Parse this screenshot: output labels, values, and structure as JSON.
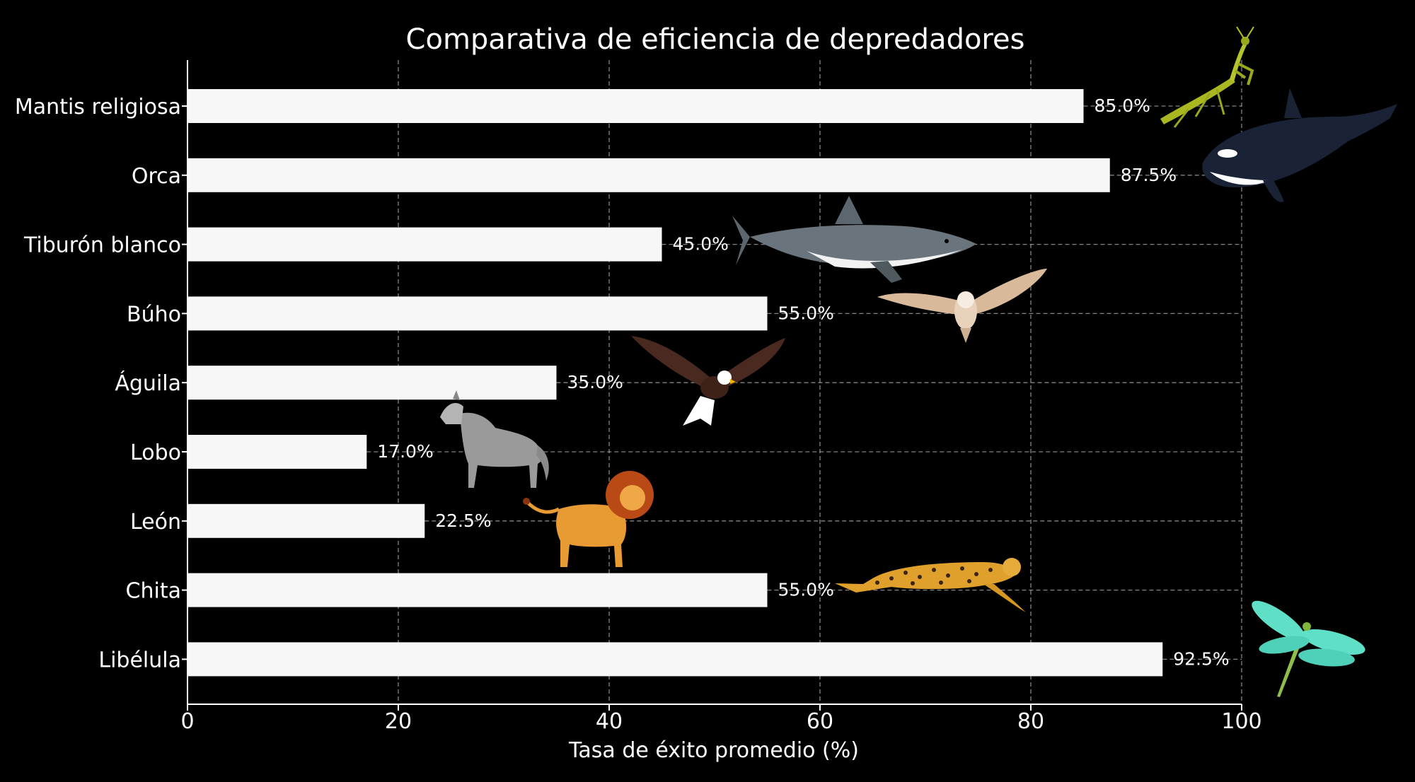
{
  "chart_data": {
    "type": "bar",
    "orientation": "horizontal",
    "title": "Comparativa de eficiencia de depredadores",
    "xlabel": "Tasa de éxito promedio (%)",
    "ylabel": "",
    "xlim": [
      0,
      100
    ],
    "xticks": [
      0,
      20,
      40,
      60,
      80,
      100
    ],
    "grid": true,
    "categories": [
      "Mantis religiosa",
      "Orca",
      "Tiburón blanco",
      "Búho",
      "Águila",
      "Lobo",
      "León",
      "Chita",
      "Libélula"
    ],
    "values": [
      85.0,
      87.5,
      45.0,
      55.0,
      35.0,
      17.0,
      22.5,
      55.0,
      92.5
    ],
    "value_labels": [
      "85.0%",
      "87.5%",
      "45.0%",
      "55.0%",
      "35.0%",
      "17.0%",
      "22.5%",
      "55.0%",
      "92.5%"
    ],
    "icons": [
      "praying-mantis-icon",
      "orca-icon",
      "great-white-shark-icon",
      "owl-icon",
      "eagle-icon",
      "wolf-icon",
      "lion-icon",
      "cheetah-icon",
      "dragonfly-icon"
    ],
    "colors": {
      "background": "#000000",
      "bar": "#f7f7f7",
      "text": "#ffffff",
      "grid": "#b0b0b0"
    }
  }
}
